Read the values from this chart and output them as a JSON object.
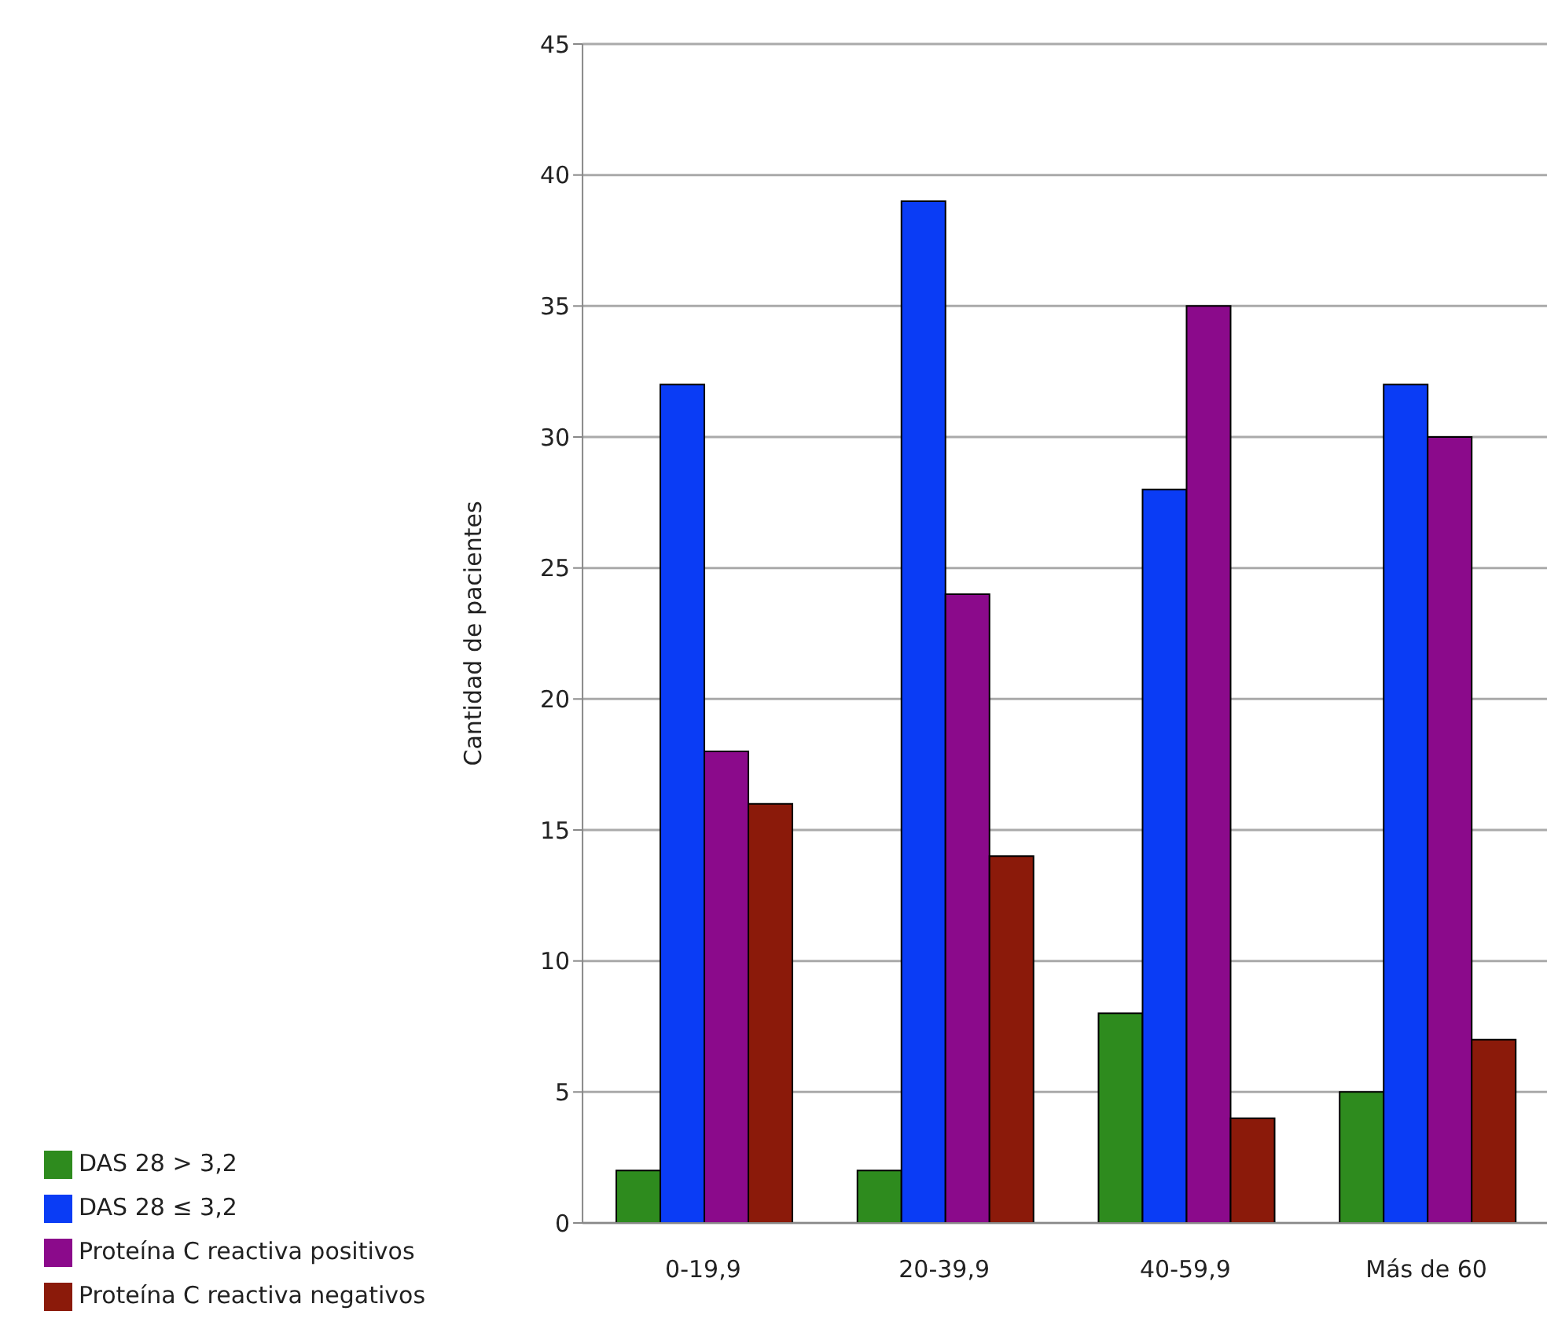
{
  "chart_data": {
    "type": "bar",
    "ylabel": "Cantidad de pacientes",
    "categories": [
      "0-19,9",
      "20-39,9",
      "40-59,9",
      "Más de 60"
    ],
    "series": [
      {
        "name": "DAS 28 > 3,2",
        "color": "#2e8b1e",
        "values": [
          2,
          2,
          8,
          5
        ]
      },
      {
        "name": "DAS 28 ≤ 3,2",
        "color": "#0a3cf5",
        "values": [
          32,
          39,
          28,
          32
        ]
      },
      {
        "name": "Proteína C reactiva positivos",
        "color": "#8b0a8b",
        "values": [
          18,
          24,
          35,
          30
        ]
      },
      {
        "name": "Proteína C reactiva negativos",
        "color": "#8b1a0a",
        "values": [
          16,
          14,
          4,
          7
        ]
      }
    ],
    "ylim": [
      0,
      45
    ],
    "yticks": [
      0,
      5,
      10,
      15,
      20,
      25,
      30,
      35,
      40,
      45
    ],
    "grid": "y",
    "legend": "bottom left"
  }
}
